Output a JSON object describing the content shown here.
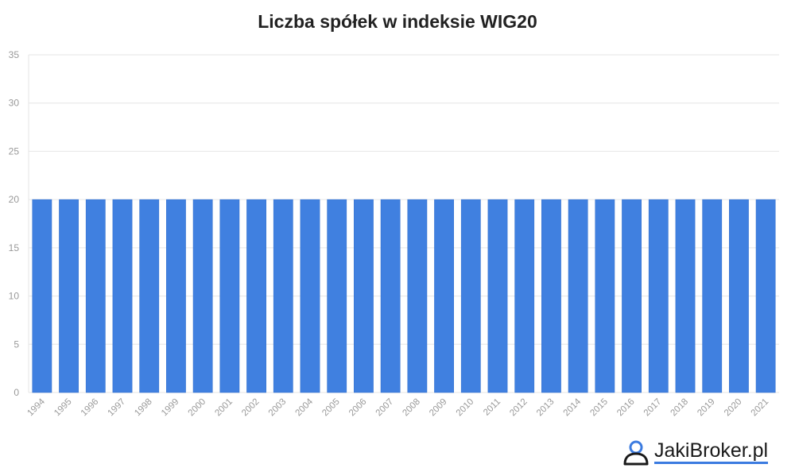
{
  "brand": {
    "text": "JakiBroker.pl",
    "icon": "user-icon"
  },
  "chart_data": {
    "type": "bar",
    "title": "Liczba spółek w indeksie WIG20",
    "xlabel": "",
    "ylabel": "",
    "categories": [
      "1994",
      "1995",
      "1996",
      "1997",
      "1998",
      "1999",
      "2000",
      "2001",
      "2002",
      "2003",
      "2004",
      "2005",
      "2006",
      "2007",
      "2008",
      "2009",
      "2010",
      "2011",
      "2012",
      "2013",
      "2014",
      "2015",
      "2016",
      "2017",
      "2018",
      "2019",
      "2020",
      "2021"
    ],
    "values": [
      20,
      20,
      20,
      20,
      20,
      20,
      20,
      20,
      20,
      20,
      20,
      20,
      20,
      20,
      20,
      20,
      20,
      20,
      20,
      20,
      20,
      20,
      20,
      20,
      20,
      20,
      20,
      20
    ],
    "ylim": [
      0,
      35
    ],
    "yticks": [
      0,
      5,
      10,
      15,
      20,
      25,
      30,
      35
    ],
    "grid": true,
    "legend": "none",
    "colors": {
      "bar": "#4080e0",
      "bar_edge": "#2f6dcc",
      "grid": "#e6e6e6",
      "tick_label": "#999999",
      "title": "#222222"
    }
  }
}
